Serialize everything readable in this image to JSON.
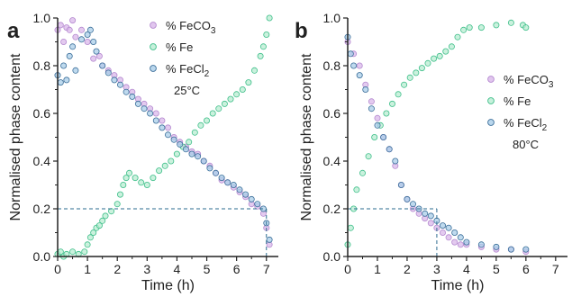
{
  "figure": {
    "width": 635,
    "height": 330
  },
  "colors": {
    "FeCO3": {
      "fill": "#d9b8ea",
      "stroke": "#b58ad0"
    },
    "Fe": {
      "fill": "#b8ecd2",
      "stroke": "#3fbf8a"
    },
    "FeCl2": {
      "fill": "#a9cde8",
      "stroke": "#3c6f9a"
    },
    "axis": "#222222",
    "guide": "#2b6b8f"
  },
  "chart_data": [
    {
      "type": "scatter",
      "panel_label": "a",
      "xlabel": "Time (h)",
      "ylabel": "Normalised phase content",
      "xlim": [
        0,
        7.4
      ],
      "ylim": [
        0,
        1.0
      ],
      "xticks": [
        "0",
        "1",
        "2",
        "3",
        "4",
        "5",
        "6",
        "7"
      ],
      "yticks": [
        "0.0",
        "0.2",
        "0.4",
        "0.6",
        "0.8",
        "1.0"
      ],
      "legend_position": "top-right",
      "annotation": "25°C",
      "guide": {
        "y": 0.2,
        "x": 7.0
      },
      "series": [
        {
          "key": "FeCO3",
          "name": "% FeCO3",
          "sub": "3",
          "base": "% FeCO",
          "points": [
            [
              0,
              0.95
            ],
            [
              0.1,
              0.97
            ],
            [
              0.2,
              0.9
            ],
            [
              0.3,
              0.96
            ],
            [
              0.4,
              0.95
            ],
            [
              0.5,
              0.99
            ],
            [
              0.6,
              0.92
            ],
            [
              0.8,
              0.95
            ],
            [
              1.0,
              0.9
            ],
            [
              1.2,
              0.83
            ],
            [
              1.4,
              0.84
            ],
            [
              1.5,
              0.8
            ],
            [
              1.7,
              0.78
            ],
            [
              1.9,
              0.76
            ],
            [
              2.1,
              0.74
            ],
            [
              2.3,
              0.71
            ],
            [
              2.5,
              0.69
            ],
            [
              2.7,
              0.66
            ],
            [
              2.9,
              0.64
            ],
            [
              3.1,
              0.62
            ],
            [
              3.3,
              0.6
            ],
            [
              3.5,
              0.57
            ],
            [
              3.7,
              0.54
            ],
            [
              3.9,
              0.5
            ],
            [
              4.1,
              0.48
            ],
            [
              4.3,
              0.46
            ],
            [
              4.5,
              0.44
            ],
            [
              4.7,
              0.43
            ],
            [
              4.9,
              0.4
            ],
            [
              5.1,
              0.38
            ],
            [
              5.3,
              0.35
            ],
            [
              5.5,
              0.32
            ],
            [
              5.7,
              0.31
            ],
            [
              5.9,
              0.29
            ],
            [
              6.1,
              0.27
            ],
            [
              6.3,
              0.25
            ],
            [
              6.5,
              0.22
            ],
            [
              6.7,
              0.21
            ],
            [
              6.9,
              0.18
            ],
            [
              7.0,
              0.12
            ],
            [
              7.1,
              0.05
            ]
          ]
        },
        {
          "key": "Fe",
          "name": "% Fe",
          "sub": "",
          "base": "% Fe",
          "points": [
            [
              0,
              0.01
            ],
            [
              0.1,
              0.02
            ],
            [
              0.2,
              0.0
            ],
            [
              0.3,
              0.01
            ],
            [
              0.5,
              0.02
            ],
            [
              0.7,
              0.01
            ],
            [
              0.9,
              0.02
            ],
            [
              1.0,
              0.05
            ],
            [
              1.1,
              0.08
            ],
            [
              1.2,
              0.1
            ],
            [
              1.3,
              0.12
            ],
            [
              1.4,
              0.13
            ],
            [
              1.5,
              0.15
            ],
            [
              1.6,
              0.17
            ],
            [
              1.8,
              0.19
            ],
            [
              2.0,
              0.22
            ],
            [
              2.1,
              0.26
            ],
            [
              2.2,
              0.3
            ],
            [
              2.3,
              0.33
            ],
            [
              2.4,
              0.35
            ],
            [
              2.6,
              0.33
            ],
            [
              2.8,
              0.31
            ],
            [
              3.0,
              0.3
            ],
            [
              3.2,
              0.33
            ],
            [
              3.4,
              0.36
            ],
            [
              3.6,
              0.38
            ],
            [
              3.8,
              0.4
            ],
            [
              4.0,
              0.43
            ],
            [
              4.2,
              0.46
            ],
            [
              4.4,
              0.48
            ],
            [
              4.6,
              0.52
            ],
            [
              4.8,
              0.55
            ],
            [
              5.0,
              0.57
            ],
            [
              5.2,
              0.6
            ],
            [
              5.4,
              0.62
            ],
            [
              5.6,
              0.64
            ],
            [
              5.8,
              0.66
            ],
            [
              6.0,
              0.68
            ],
            [
              6.2,
              0.7
            ],
            [
              6.4,
              0.73
            ],
            [
              6.6,
              0.78
            ],
            [
              6.8,
              0.84
            ],
            [
              6.9,
              0.88
            ],
            [
              7.0,
              0.93
            ],
            [
              7.1,
              1.0
            ]
          ]
        },
        {
          "key": "FeCl2",
          "name": "% FeCl2",
          "sub": "2",
          "base": "% FeCl",
          "points": [
            [
              0,
              0.76
            ],
            [
              0.1,
              0.73
            ],
            [
              0.2,
              0.8
            ],
            [
              0.3,
              0.74
            ],
            [
              0.4,
              0.84
            ],
            [
              0.5,
              0.88
            ],
            [
              0.6,
              0.78
            ],
            [
              0.8,
              0.91
            ],
            [
              1.0,
              0.93
            ],
            [
              1.1,
              0.95
            ],
            [
              1.2,
              0.9
            ],
            [
              1.3,
              0.86
            ],
            [
              1.5,
              0.8
            ],
            [
              1.7,
              0.77
            ],
            [
              1.9,
              0.74
            ],
            [
              2.1,
              0.72
            ],
            [
              2.3,
              0.69
            ],
            [
              2.5,
              0.67
            ],
            [
              2.7,
              0.64
            ],
            [
              2.9,
              0.62
            ],
            [
              3.1,
              0.6
            ],
            [
              3.3,
              0.57
            ],
            [
              3.5,
              0.54
            ],
            [
              3.7,
              0.51
            ],
            [
              3.9,
              0.49
            ],
            [
              4.1,
              0.47
            ],
            [
              4.3,
              0.45
            ],
            [
              4.5,
              0.43
            ],
            [
              4.7,
              0.42
            ],
            [
              4.9,
              0.4
            ],
            [
              5.1,
              0.37
            ],
            [
              5.3,
              0.35
            ],
            [
              5.5,
              0.33
            ],
            [
              5.7,
              0.31
            ],
            [
              5.9,
              0.3
            ],
            [
              6.1,
              0.28
            ],
            [
              6.3,
              0.26
            ],
            [
              6.5,
              0.24
            ],
            [
              6.7,
              0.22
            ],
            [
              6.9,
              0.2
            ],
            [
              7.0,
              0.14
            ],
            [
              7.1,
              0.07
            ]
          ]
        }
      ]
    },
    {
      "type": "scatter",
      "panel_label": "b",
      "xlabel": "Time (h)",
      "ylabel": "Normalised phase content",
      "xlim": [
        0,
        7.4
      ],
      "ylim": [
        0,
        1.0
      ],
      "xticks": [
        "0",
        "1",
        "2",
        "3",
        "4",
        "5",
        "6",
        "7"
      ],
      "yticks": [
        "0.0",
        "0.2",
        "0.4",
        "0.6",
        "0.8",
        "1.0"
      ],
      "legend_position": "right",
      "annotation": "80°C",
      "guide": {
        "y": 0.2,
        "x": 3.0
      },
      "series": [
        {
          "key": "FeCO3",
          "name": "% FeCO3",
          "sub": "3",
          "base": "% FeCO",
          "points": [
            [
              0,
              0.9
            ],
            [
              0.2,
              0.85
            ],
            [
              0.4,
              0.8
            ],
            [
              0.6,
              0.72
            ],
            [
              0.8,
              0.65
            ],
            [
              1.0,
              0.58
            ],
            [
              1.2,
              0.5
            ],
            [
              1.4,
              0.45
            ],
            [
              1.6,
              0.38
            ],
            [
              1.8,
              0.3
            ],
            [
              2.0,
              0.24
            ],
            [
              2.2,
              0.2
            ],
            [
              2.4,
              0.18
            ],
            [
              2.6,
              0.16
            ],
            [
              2.8,
              0.14
            ],
            [
              3.0,
              0.12
            ],
            [
              3.2,
              0.1
            ],
            [
              3.4,
              0.08
            ],
            [
              3.6,
              0.06
            ],
            [
              3.8,
              0.05
            ],
            [
              4.0,
              0.05
            ],
            [
              4.5,
              0.04
            ],
            [
              5.0,
              0.03
            ],
            [
              5.5,
              0.03
            ],
            [
              6.0,
              0.02
            ]
          ]
        },
        {
          "key": "Fe",
          "name": "% Fe",
          "sub": "",
          "base": "% Fe",
          "points": [
            [
              0,
              0.05
            ],
            [
              0.1,
              0.12
            ],
            [
              0.2,
              0.2
            ],
            [
              0.3,
              0.28
            ],
            [
              0.5,
              0.35
            ],
            [
              0.7,
              0.42
            ],
            [
              0.9,
              0.5
            ],
            [
              1.1,
              0.55
            ],
            [
              1.3,
              0.6
            ],
            [
              1.5,
              0.64
            ],
            [
              1.7,
              0.68
            ],
            [
              1.9,
              0.72
            ],
            [
              2.1,
              0.75
            ],
            [
              2.3,
              0.77
            ],
            [
              2.5,
              0.79
            ],
            [
              2.7,
              0.81
            ],
            [
              2.9,
              0.83
            ],
            [
              3.1,
              0.84
            ],
            [
              3.3,
              0.86
            ],
            [
              3.5,
              0.88
            ],
            [
              3.7,
              0.92
            ],
            [
              3.9,
              0.95
            ],
            [
              4.1,
              0.96
            ],
            [
              4.5,
              0.96
            ],
            [
              5.0,
              0.97
            ],
            [
              5.5,
              0.98
            ],
            [
              5.9,
              0.97
            ],
            [
              6.0,
              0.96
            ]
          ]
        },
        {
          "key": "FeCl2",
          "name": "% FeCl2",
          "sub": "2",
          "base": "% FeCl",
          "points": [
            [
              0,
              0.92
            ],
            [
              0.1,
              0.85
            ],
            [
              0.2,
              0.8
            ],
            [
              0.4,
              0.76
            ],
            [
              0.6,
              0.7
            ],
            [
              0.8,
              0.62
            ],
            [
              1.0,
              0.55
            ],
            [
              1.2,
              0.5
            ],
            [
              1.4,
              0.45
            ],
            [
              1.6,
              0.4
            ],
            [
              1.8,
              0.3
            ],
            [
              2.0,
              0.24
            ],
            [
              2.2,
              0.22
            ],
            [
              2.4,
              0.2
            ],
            [
              2.6,
              0.18
            ],
            [
              2.8,
              0.17
            ],
            [
              3.0,
              0.15
            ],
            [
              3.2,
              0.13
            ],
            [
              3.4,
              0.12
            ],
            [
              3.6,
              0.1
            ],
            [
              3.8,
              0.08
            ],
            [
              4.0,
              0.06
            ],
            [
              4.5,
              0.05
            ],
            [
              5.0,
              0.04
            ],
            [
              5.5,
              0.03
            ],
            [
              6.0,
              0.03
            ]
          ]
        }
      ]
    }
  ]
}
